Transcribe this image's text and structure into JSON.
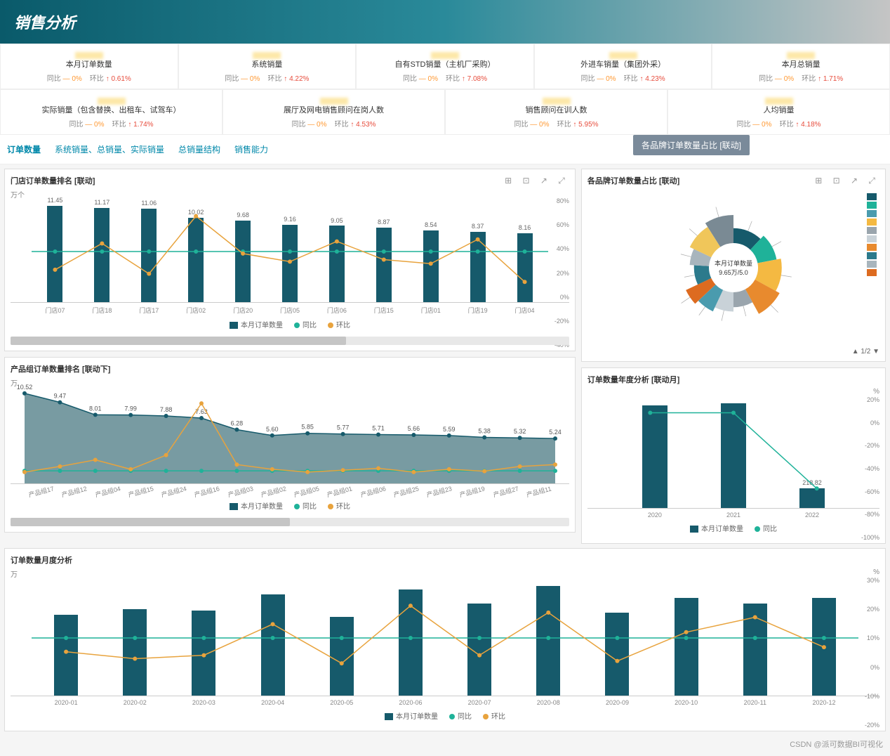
{
  "header": {
    "title": "销售分析"
  },
  "kpis_row1": [
    {
      "title": "本月订单数量",
      "tb_label": "同比",
      "tb_val": "— 0%",
      "hb_label": "环比",
      "hb_val": "0.61%"
    },
    {
      "title": "系统销量",
      "tb_label": "同比",
      "tb_val": "— 0%",
      "hb_label": "环比",
      "hb_val": "4.22%"
    },
    {
      "title": "自有STD销量（主机厂采购）",
      "tb_label": "同比",
      "tb_val": "— 0%",
      "hb_label": "环比",
      "hb_val": "7.08%"
    },
    {
      "title": "外进车销量（集团外采）",
      "tb_label": "同比",
      "tb_val": "— 0%",
      "hb_label": "环比",
      "hb_val": "4.23%"
    },
    {
      "title": "本月总销量",
      "tb_label": "同比",
      "tb_val": "— 0%",
      "hb_label": "环比",
      "hb_val": "1.71%"
    }
  ],
  "kpis_row2": [
    {
      "title": "实际销量（包含替换、出租车、试驾车）",
      "tb_label": "同比",
      "tb_val": "— 0%",
      "hb_label": "环比",
      "hb_val": "1.74%"
    },
    {
      "title": "展厅及网电销售顾问在岗人数",
      "tb_label": "同比",
      "tb_val": "— 0%",
      "hb_label": "环比",
      "hb_val": "4.53%"
    },
    {
      "title": "销售顾问在训人数",
      "tb_label": "同比",
      "tb_val": "— 0%",
      "hb_label": "环比",
      "hb_val": "5.95%"
    },
    {
      "title": "人均销量",
      "tb_label": "同比",
      "tb_val": "— 0%",
      "hb_label": "环比",
      "hb_val": "4.18%"
    }
  ],
  "tabs": {
    "items": [
      "订单数量",
      "系统销量、总销量、实际销量",
      "总销量结构",
      "销售能力"
    ],
    "active": 0,
    "tooltip": "各品牌订单数量占比 [联动]"
  },
  "chart1": {
    "title": "门店订单数量排名 [联动]",
    "y_left_label": "万个",
    "bar_color": "#165a6b",
    "line1_color": "#1fb299",
    "line2_color": "#e8a33d",
    "categories": [
      "门店07",
      "门店18",
      "门店17",
      "门店02",
      "门店20",
      "门店05",
      "门店06",
      "门店15",
      "门店01",
      "门店19",
      "门店04"
    ],
    "values": [
      11.45,
      11.17,
      11.06,
      10.02,
      9.68,
      9.16,
      9.05,
      8.87,
      8.54,
      8.37,
      8.16
    ],
    "value_labels": [
      "11.45",
      "11.17",
      "11.06",
      "10.02",
      "9.68",
      "9.16",
      "9.05",
      "8.87",
      "8.54",
      "8.37",
      "8.16"
    ],
    "y_max": 12,
    "y2_ticks": [
      "80%",
      "60%",
      "40%",
      "20%",
      "0%",
      "-20%",
      "-40%"
    ],
    "line2_y": [
      32,
      58,
      28,
      85,
      48,
      40,
      60,
      42,
      38,
      62,
      20
    ],
    "legend": [
      {
        "type": "sq",
        "color": "#165a6b",
        "label": "本月订单数量"
      },
      {
        "type": "cir",
        "color": "#1fb299",
        "label": "同比"
      },
      {
        "type": "cir",
        "color": "#e8a33d",
        "label": "环比"
      }
    ]
  },
  "donut": {
    "title": "各品牌订单数量占比 [联动]",
    "center_label": "本月订单数量",
    "center_value": "9.65万/5.0",
    "slices": [
      {
        "color": "#165a6b",
        "value": 12
      },
      {
        "color": "#1fb299",
        "value": 10
      },
      {
        "color": "#f4b942",
        "value": 11
      },
      {
        "color": "#e88a2e",
        "value": 9
      },
      {
        "color": "#9aa5ad",
        "value": 8
      },
      {
        "color": "#c9d2d8",
        "value": 7
      },
      {
        "color": "#4a9bae",
        "value": 6
      },
      {
        "color": "#dd6b20",
        "value": 5
      },
      {
        "color": "#2c7a8c",
        "value": 8
      },
      {
        "color": "#a8b5bd",
        "value": 6
      },
      {
        "color": "#f0c65a",
        "value": 9
      },
      {
        "color": "#7a8a94",
        "value": 9
      }
    ],
    "legend_colors": [
      "#165a6b",
      "#1fb299",
      "#4a9bae",
      "#f4b942",
      "#9aa5ad",
      "#c9d2d8",
      "#e88a2e",
      "#2c7a8c",
      "#a8b5bd",
      "#dd6b20"
    ],
    "pager": "1/2"
  },
  "chart2": {
    "title": "产品组订单数量排名 [联动下]",
    "y_left_label": "万",
    "area_color": "#608a92",
    "line1_color": "#1fb299",
    "line2_color": "#e8a33d",
    "categories": [
      "产品组17",
      "产品组12",
      "产品组04",
      "产品组15",
      "产品组24",
      "产品组16",
      "产品组03",
      "产品组02",
      "产品组05",
      "产品组01",
      "产品组06",
      "产品组25",
      "产品组23",
      "产品组19",
      "产品组27",
      "产品组11"
    ],
    "values": [
      10.52,
      9.47,
      8.01,
      7.99,
      7.88,
      7.63,
      6.28,
      5.6,
      5.85,
      5.77,
      5.71,
      5.66,
      5.59,
      5.38,
      5.32,
      5.24
    ],
    "value_labels": [
      "10.52",
      "9.47",
      "8.01",
      "7.99",
      "7.88",
      "7.63",
      "6.28",
      "5.60",
      "5.85",
      "5.77",
      "5.71",
      "5.66",
      "5.59",
      "5.38",
      "5.32",
      "5.24"
    ],
    "y_max": 11,
    "line2_y": [
      12,
      18,
      25,
      15,
      30,
      85,
      20,
      15,
      12,
      14,
      16,
      12,
      15,
      13,
      18,
      20
    ],
    "legend": [
      {
        "type": "sq",
        "color": "#165a6b",
        "label": "本月订单数量"
      },
      {
        "type": "cir",
        "color": "#1fb299",
        "label": "同比"
      },
      {
        "type": "cir",
        "color": "#e8a33d",
        "label": "环比"
      }
    ]
  },
  "chart3": {
    "title": "订单数量年度分析 [联动月]",
    "y_right_label": "%",
    "bar_color": "#165a6b",
    "line_color": "#1fb299",
    "categories": [
      "2020",
      "2021",
      "2022"
    ],
    "values": [
      95,
      97,
      18
    ],
    "value_labels": [
      "",
      "",
      "218.82"
    ],
    "y2_ticks": [
      "20%",
      "0%",
      "-20%",
      "-40%",
      "-60%",
      "-80%",
      "-100%"
    ],
    "line_y": [
      88,
      88,
      18
    ],
    "legend": [
      {
        "type": "sq",
        "color": "#165a6b",
        "label": "本月订单数量"
      },
      {
        "type": "cir",
        "color": "#1fb299",
        "label": "同比"
      }
    ]
  },
  "chart4": {
    "title": "订单数量月度分析",
    "y_left_label": "万",
    "y_right_label": "%",
    "bar_color": "#165a6b",
    "line1_color": "#1fb299",
    "line2_color": "#e8a33d",
    "categories": [
      "2020-01",
      "2020-02",
      "2020-03",
      "2020-04",
      "2020-05",
      "2020-06",
      "2020-07",
      "2020-08",
      "2020-09",
      "2020-10",
      "2020-11",
      "2020-12"
    ],
    "values": [
      70,
      75,
      74,
      88,
      68,
      92,
      80,
      95,
      72,
      85,
      80,
      85
    ],
    "y_max": 100,
    "y2_ticks": [
      "30%",
      "20%",
      "10%",
      "0%",
      "-10%",
      "-20%"
    ],
    "line2_y": [
      38,
      32,
      35,
      62,
      28,
      78,
      35,
      72,
      30,
      55,
      68,
      42
    ],
    "line1_y": [
      40,
      40,
      40,
      40,
      40,
      40,
      40,
      40,
      40,
      40,
      40,
      40
    ],
    "legend": [
      {
        "type": "sq",
        "color": "#165a6b",
        "label": "本月订单数量"
      },
      {
        "type": "cir",
        "color": "#1fb299",
        "label": "同比"
      },
      {
        "type": "cir",
        "color": "#e8a33d",
        "label": "环比"
      }
    ]
  },
  "footer": {
    "watermark": "CSDN @派可数据BI可视化"
  }
}
